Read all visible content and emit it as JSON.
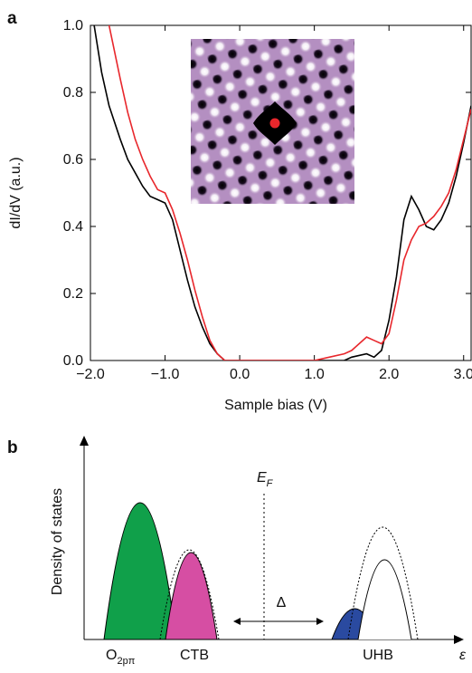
{
  "chart_data": {
    "type": "line",
    "panel_label": "a",
    "x_label": "Sample bias (V)",
    "y_label": "dI/dV (a.u.)",
    "xlim": [
      -2.0,
      3.1
    ],
    "ylim": [
      0.0,
      1.0
    ],
    "xticks": [
      {
        "value": -2.0,
        "label": "−2.0"
      },
      {
        "value": -1.0,
        "label": "−1.0"
      },
      {
        "value": 0.0,
        "label": "0.0"
      },
      {
        "value": 1.0,
        "label": "1.0"
      },
      {
        "value": 2.0,
        "label": "2.0"
      },
      {
        "value": 3.0,
        "label": "3.0"
      }
    ],
    "yticks": [
      {
        "value": 0.0,
        "label": "0.0"
      },
      0.2,
      0.4,
      0.6,
      0.8,
      {
        "value": 1.0,
        "label": "1.0"
      }
    ],
    "x": [
      -1.95,
      -1.85,
      -1.75,
      -1.6,
      -1.5,
      -1.4,
      -1.3,
      -1.2,
      -1.1,
      -1.0,
      -0.9,
      -0.8,
      -0.7,
      -0.6,
      -0.5,
      -0.4,
      -0.3,
      -0.2,
      0,
      0.5,
      1.0,
      1.2,
      1.4,
      1.5,
      1.6,
      1.7,
      1.8,
      1.9,
      2.0,
      2.1,
      2.2,
      2.3,
      2.4,
      2.5,
      2.6,
      2.7,
      2.8,
      2.9,
      3.0,
      3.1
    ],
    "series": [
      {
        "color": "#000000",
        "values": [
          1.0,
          0.86,
          0.76,
          0.66,
          0.6,
          0.56,
          0.52,
          0.49,
          0.48,
          0.47,
          0.42,
          0.33,
          0.24,
          0.16,
          0.1,
          0.05,
          0.02,
          0.0,
          0,
          0,
          0,
          0,
          0.0,
          0.01,
          0.015,
          0.02,
          0.01,
          0.03,
          0.12,
          0.25,
          0.42,
          0.49,
          0.45,
          0.4,
          0.39,
          0.42,
          0.47,
          0.55,
          0.65,
          0.76
        ]
      },
      {
        "color": "#e8272c",
        "values": [
          null,
          null,
          1.0,
          0.84,
          0.74,
          0.66,
          0.6,
          0.55,
          0.51,
          0.5,
          0.45,
          0.38,
          0.3,
          0.21,
          0.13,
          0.06,
          0.02,
          0.0,
          0,
          0,
          0,
          0.01,
          0.02,
          0.03,
          0.05,
          0.07,
          0.06,
          0.05,
          0.08,
          0.18,
          0.3,
          0.36,
          0.4,
          0.41,
          0.43,
          0.46,
          0.5,
          0.57,
          0.66,
          0.75
        ]
      }
    ]
  },
  "panel_b": {
    "panel_label": "b",
    "y_label": "Density of states",
    "fermi_symbol": "E",
    "fermi_subscript": "F",
    "gap_symbol": "Δ",
    "o2p_base": "O",
    "o2p_subscript": "2pπ",
    "ctb_label": "CTB",
    "uhb_label": "UHB",
    "x_symbol": "ε"
  }
}
